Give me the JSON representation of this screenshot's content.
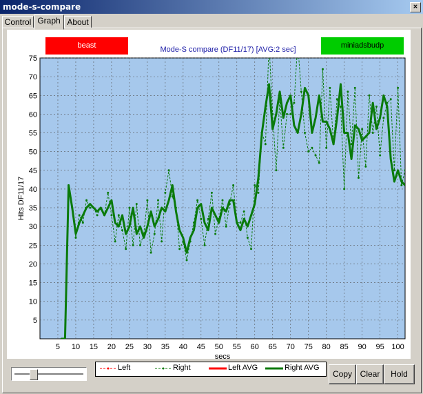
{
  "window": {
    "title": "mode-s-compare",
    "close_label": "×"
  },
  "tabs": [
    {
      "label": "Control"
    },
    {
      "label": "Graph"
    },
    {
      "label": "About"
    }
  ],
  "chart_legend_buttons": {
    "left": "beast",
    "right": "miniadsbudp"
  },
  "buttons": {
    "copy": "Copy",
    "clear": "Clear",
    "hold": "Hold"
  },
  "legend": [
    {
      "label": "Left"
    },
    {
      "label": "Right"
    },
    {
      "label": "Left AVG"
    },
    {
      "label": "Right AVG"
    }
  ],
  "colors": {
    "plot_bg": "#a6c8ec",
    "left": "#ff0000",
    "right": "#0a7a0a",
    "beast_btn": "#ff0000",
    "mini_btn": "#00cc00"
  },
  "chart_data": {
    "type": "line",
    "title": "Mode-S compare (DF11/17) [AVG:2 sec]",
    "xlabel": "secs",
    "ylabel": "Hits DF11/17",
    "xlim": [
      0,
      102
    ],
    "ylim": [
      0,
      75
    ],
    "xticks": [
      5,
      10,
      15,
      20,
      25,
      30,
      35,
      40,
      45,
      50,
      55,
      60,
      65,
      70,
      75,
      80,
      85,
      90,
      95,
      100
    ],
    "yticks": [
      5,
      10,
      15,
      20,
      25,
      30,
      35,
      40,
      45,
      50,
      55,
      60,
      65,
      70,
      75
    ],
    "grid": true,
    "series": [
      {
        "name": "Right",
        "x": [
          6,
          7,
          8,
          9,
          10,
          11,
          12,
          13,
          14,
          15,
          16,
          17,
          18,
          19,
          20,
          21,
          22,
          23,
          24,
          25,
          26,
          27,
          28,
          29,
          30,
          31,
          32,
          33,
          34,
          35,
          36,
          37,
          38,
          39,
          40,
          41,
          42,
          43,
          44,
          45,
          46,
          47,
          48,
          49,
          50,
          51,
          52,
          53,
          54,
          55,
          56,
          57,
          58,
          59,
          60,
          61,
          62,
          63,
          64,
          65,
          66,
          67,
          68,
          69,
          70,
          71,
          72,
          73,
          74,
          75,
          76,
          77,
          78,
          79,
          80,
          81,
          82,
          83,
          84,
          85,
          86,
          87,
          88,
          89,
          90,
          91,
          92,
          93,
          94,
          95,
          96,
          97,
          98,
          99,
          100,
          101,
          102
        ],
        "values": [
          0,
          0,
          41,
          35,
          27,
          33,
          31,
          37,
          35,
          35,
          33,
          35,
          33,
          39,
          33,
          26,
          33,
          29,
          24,
          35,
          25,
          36,
          25,
          28,
          37,
          23,
          28,
          37,
          26,
          39,
          45,
          38,
          35,
          24,
          26,
          21,
          26,
          31,
          37,
          32,
          25,
          32,
          39,
          28,
          32,
          37,
          30,
          36,
          41,
          31,
          31,
          34,
          27,
          24,
          41,
          39,
          55,
          52,
          79,
          60,
          45,
          64,
          51,
          60,
          60,
          63,
          79,
          66,
          55,
          50,
          51,
          49,
          47,
          72,
          51,
          67,
          52,
          64,
          62,
          40,
          66,
          52,
          67,
          43,
          56,
          46,
          65,
          55,
          62,
          49,
          59,
          63,
          64,
          45,
          67,
          41,
          45
        ]
      },
      {
        "name": "Right AVG",
        "x": [
          6,
          7,
          8,
          9,
          10,
          11,
          12,
          13,
          14,
          15,
          16,
          17,
          18,
          19,
          20,
          21,
          22,
          23,
          24,
          25,
          26,
          27,
          28,
          29,
          30,
          31,
          32,
          33,
          34,
          35,
          36,
          37,
          38,
          39,
          40,
          41,
          42,
          43,
          44,
          45,
          46,
          47,
          48,
          49,
          50,
          51,
          52,
          53,
          54,
          55,
          56,
          57,
          58,
          59,
          60,
          61,
          62,
          63,
          64,
          65,
          66,
          67,
          68,
          69,
          70,
          71,
          72,
          73,
          74,
          75,
          76,
          77,
          78,
          79,
          80,
          81,
          82,
          83,
          84,
          85,
          86,
          87,
          88,
          89,
          90,
          91,
          92,
          93,
          94,
          95,
          96,
          97,
          98,
          99,
          100,
          101,
          102
        ],
        "values": [
          0,
          0,
          41,
          35,
          28,
          31,
          33,
          35,
          36,
          35,
          34,
          35,
          33,
          35,
          37,
          31,
          30,
          33,
          28,
          30,
          35,
          28,
          30,
          27,
          30,
          34,
          30,
          32,
          35,
          34,
          37,
          41,
          34,
          29,
          27,
          23,
          27,
          29,
          35,
          36,
          31,
          29,
          35,
          33,
          31,
          35,
          34,
          37,
          37,
          31,
          29,
          32,
          30,
          33,
          36,
          43,
          55,
          62,
          68,
          56,
          60,
          66,
          59,
          63,
          65,
          57,
          55,
          60,
          67,
          65,
          55,
          59,
          65,
          58,
          58,
          56,
          52,
          59,
          68,
          55,
          55,
          48,
          57,
          56,
          53,
          54,
          55,
          63,
          56,
          59,
          65,
          62,
          48,
          42,
          45,
          42,
          41
        ]
      },
      {
        "name": "Left",
        "values": []
      },
      {
        "name": "Left AVG",
        "values": []
      }
    ]
  }
}
